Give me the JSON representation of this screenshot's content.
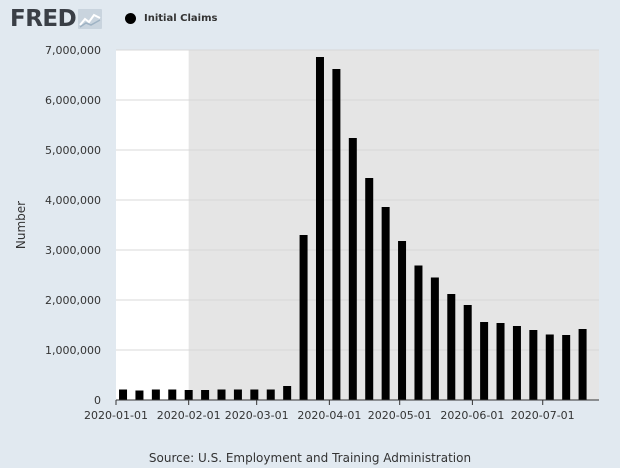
{
  "brand": {
    "logo_text": "FRED"
  },
  "source_text": "Source: U.S. Employment and Training Administration",
  "colors": {
    "background": "#e1e9f0",
    "recession": "#e5e5e5",
    "bar": "#000000"
  },
  "chart_data": {
    "type": "bar",
    "ylabel": "Number",
    "ylim": [
      0,
      7000000
    ],
    "yticks": [
      0,
      1000000,
      2000000,
      3000000,
      4000000,
      5000000,
      6000000,
      7000000
    ],
    "ytick_labels": [
      "0",
      "1,000,000",
      "2,000,000",
      "3,000,000",
      "4,000,000",
      "5,000,000",
      "6,000,000",
      "7,000,000"
    ],
    "xlim": [
      "2020-01-01",
      "2020-07-25"
    ],
    "xticks": [
      "2020-01-01",
      "2020-02-01",
      "2020-03-01",
      "2020-04-01",
      "2020-05-01",
      "2020-06-01",
      "2020-07-01"
    ],
    "grid": true,
    "legend": "top-left",
    "shaded_region": [
      "2020-02-01",
      "2020-07-25"
    ],
    "series": [
      {
        "name": "Initial Claims",
        "color": "#000000",
        "x": [
          "2020-01-04",
          "2020-01-11",
          "2020-01-18",
          "2020-01-25",
          "2020-02-01",
          "2020-02-08",
          "2020-02-15",
          "2020-02-22",
          "2020-02-29",
          "2020-03-07",
          "2020-03-14",
          "2020-03-21",
          "2020-03-28",
          "2020-04-04",
          "2020-04-11",
          "2020-04-18",
          "2020-04-25",
          "2020-05-02",
          "2020-05-09",
          "2020-05-16",
          "2020-05-23",
          "2020-05-30",
          "2020-06-06",
          "2020-06-13",
          "2020-06-20",
          "2020-06-27",
          "2020-07-04",
          "2020-07-11",
          "2020-07-18"
        ],
        "values": [
          210000,
          190000,
          210000,
          210000,
          200000,
          200000,
          210000,
          210000,
          210000,
          210000,
          280000,
          3300000,
          6860000,
          6620000,
          5240000,
          4440000,
          3860000,
          3180000,
          2690000,
          2450000,
          2120000,
          1900000,
          1560000,
          1540000,
          1480000,
          1400000,
          1310000,
          1300000,
          1420000
        ]
      }
    ]
  }
}
